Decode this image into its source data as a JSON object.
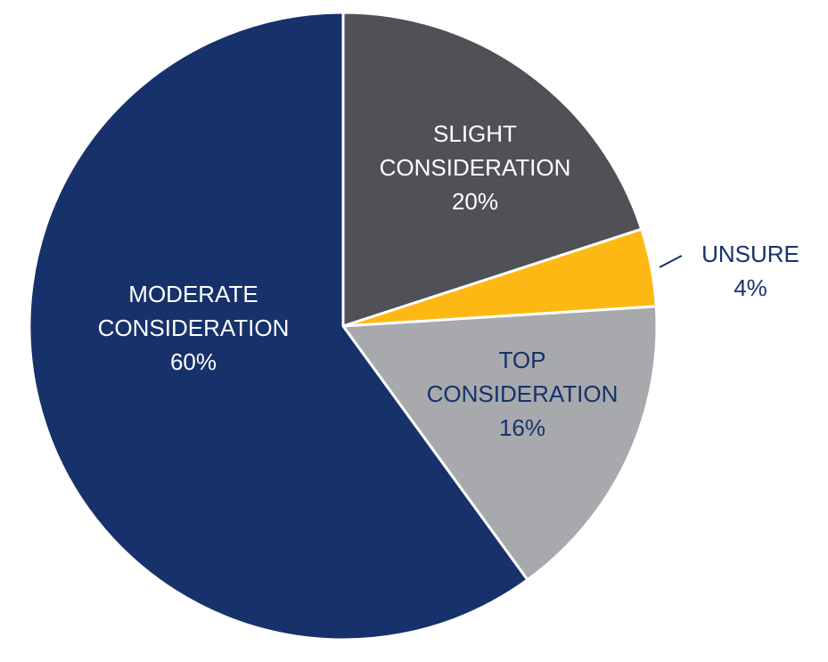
{
  "chart_data": {
    "type": "pie",
    "categories": [
      "SLIGHT CONSIDERATION",
      "UNSURE",
      "TOP CONSIDERATION",
      "MODERATE CONSIDERATION"
    ],
    "values": [
      20,
      4,
      16,
      60
    ],
    "value_labels": [
      "20%",
      "4%",
      "16%",
      "60%"
    ],
    "colors": [
      "#4f5157",
      "#fdb813",
      "#a7a9ac",
      "#17316b"
    ]
  }
}
